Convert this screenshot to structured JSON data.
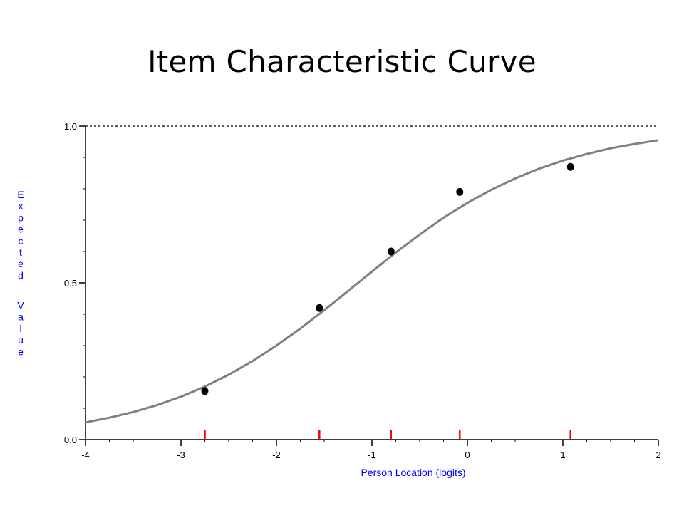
{
  "slide": {
    "title": "Item Characteristic Curve"
  },
  "chart_data": {
    "type": "line",
    "title": "",
    "xlabel": "Person Location (logits)",
    "ylabel": "Expected Value",
    "xlim": [
      -4,
      2
    ],
    "ylim": [
      0,
      1
    ],
    "x_ticks": [
      -4,
      -3,
      -2,
      -1,
      0,
      1,
      2
    ],
    "x_tick_labels": [
      "-4",
      "-3",
      "-2",
      "-1",
      "0",
      "1",
      "2"
    ],
    "y_ticks": [
      0,
      0.5,
      1.0
    ],
    "y_tick_labels": [
      "0.0",
      "0.5",
      "1.0"
    ],
    "y_minor_step": 0.1,
    "x_minor_step": 0.25,
    "reference_line": {
      "y": 1.0,
      "style": "dashed"
    },
    "grid": false,
    "curve": {
      "x": [
        -4.0,
        -3.75,
        -3.5,
        -3.25,
        -3.0,
        -2.75,
        -2.5,
        -2.25,
        -2.0,
        -1.75,
        -1.5,
        -1.25,
        -1.0,
        -0.75,
        -0.5,
        -0.25,
        0.0,
        0.25,
        0.5,
        0.75,
        1.0,
        1.25,
        1.5,
        1.75,
        2.0
      ],
      "y": [
        0.055,
        0.07,
        0.088,
        0.11,
        0.137,
        0.169,
        0.207,
        0.251,
        0.3,
        0.354,
        0.413,
        0.474,
        0.536,
        0.597,
        0.654,
        0.708,
        0.755,
        0.797,
        0.833,
        0.864,
        0.89,
        0.911,
        0.929,
        0.943,
        0.955
      ],
      "color": "#7f7f7f"
    },
    "observed_points": {
      "x": [
        -2.75,
        -1.55,
        -0.8,
        -0.08,
        1.08
      ],
      "y": [
        0.155,
        0.42,
        0.6,
        0.79,
        0.87
      ],
      "color": "#000000"
    },
    "class_interval_marks": {
      "x": [
        -2.75,
        -1.55,
        -0.8,
        -0.08,
        1.08
      ],
      "color": "#ff0000"
    },
    "colors": {
      "axis_label": "#0000ff",
      "axis": "#000000"
    }
  }
}
